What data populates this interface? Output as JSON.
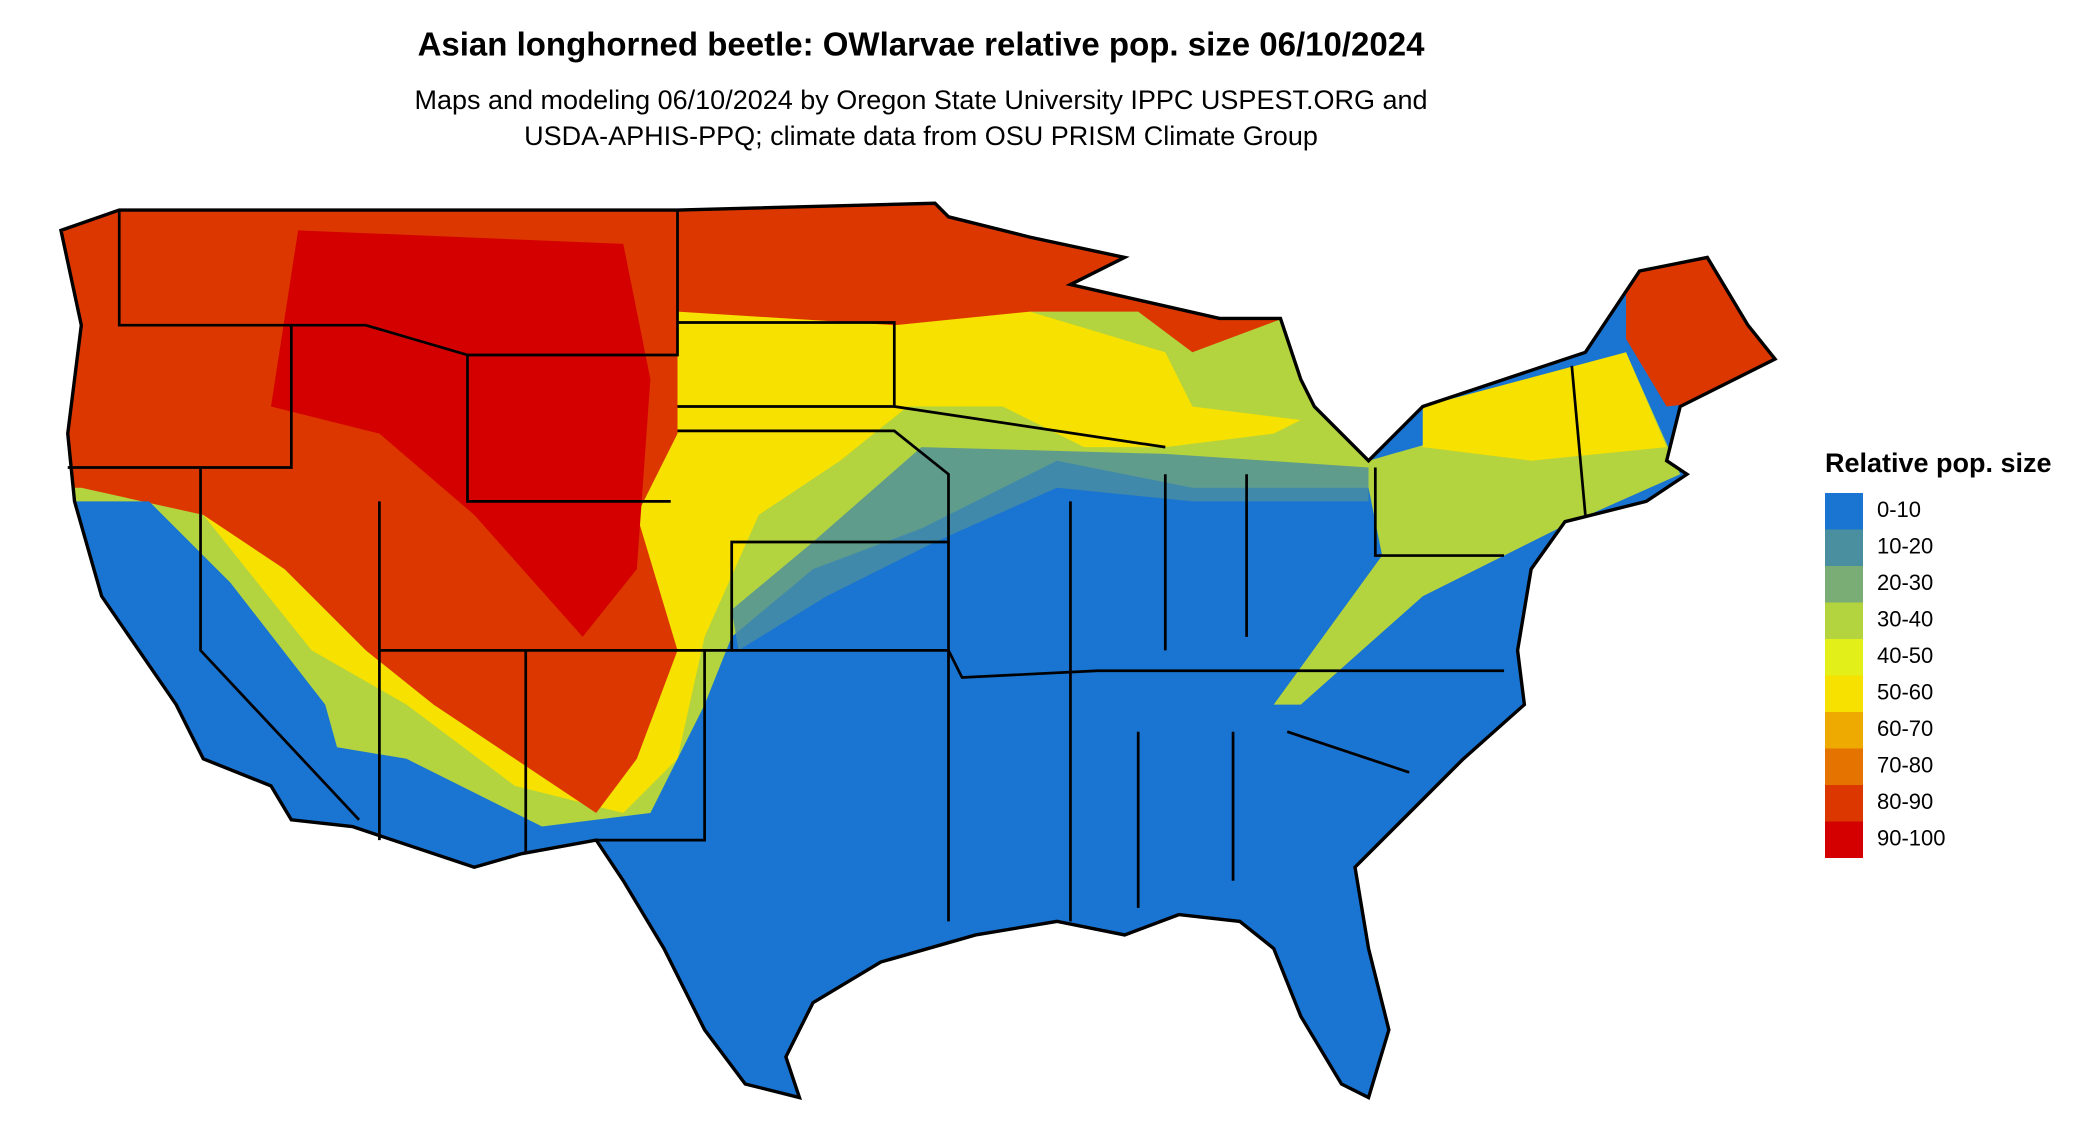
{
  "map": {
    "title": "Asian longhorned beetle: OWlarvae relative pop. size 06/10/2024",
    "subtitle": [
      "Maps and modeling 06/10/2024 by Oregon State University IPPC USPEST.ORG and",
      "USDA-APHIS-PPQ; climate data from OSU PRISM Climate Group"
    ],
    "legend": {
      "title": "Relative pop. size",
      "items": [
        {
          "label": "0-10",
          "color": "#1a74d1"
        },
        {
          "label": "10-20",
          "color": "#4a8fa0"
        },
        {
          "label": "20-30",
          "color": "#79ad75"
        },
        {
          "label": "30-40",
          "color": "#b3d33f"
        },
        {
          "label": "40-50",
          "color": "#e2ef19"
        },
        {
          "label": "50-60",
          "color": "#f6e100"
        },
        {
          "label": "60-70",
          "color": "#eeaa00"
        },
        {
          "label": "70-80",
          "color": "#e57300"
        },
        {
          "label": "80-90",
          "color": "#dd3700"
        },
        {
          "label": "90-100",
          "color": "#d40000"
        }
      ]
    }
  }
}
